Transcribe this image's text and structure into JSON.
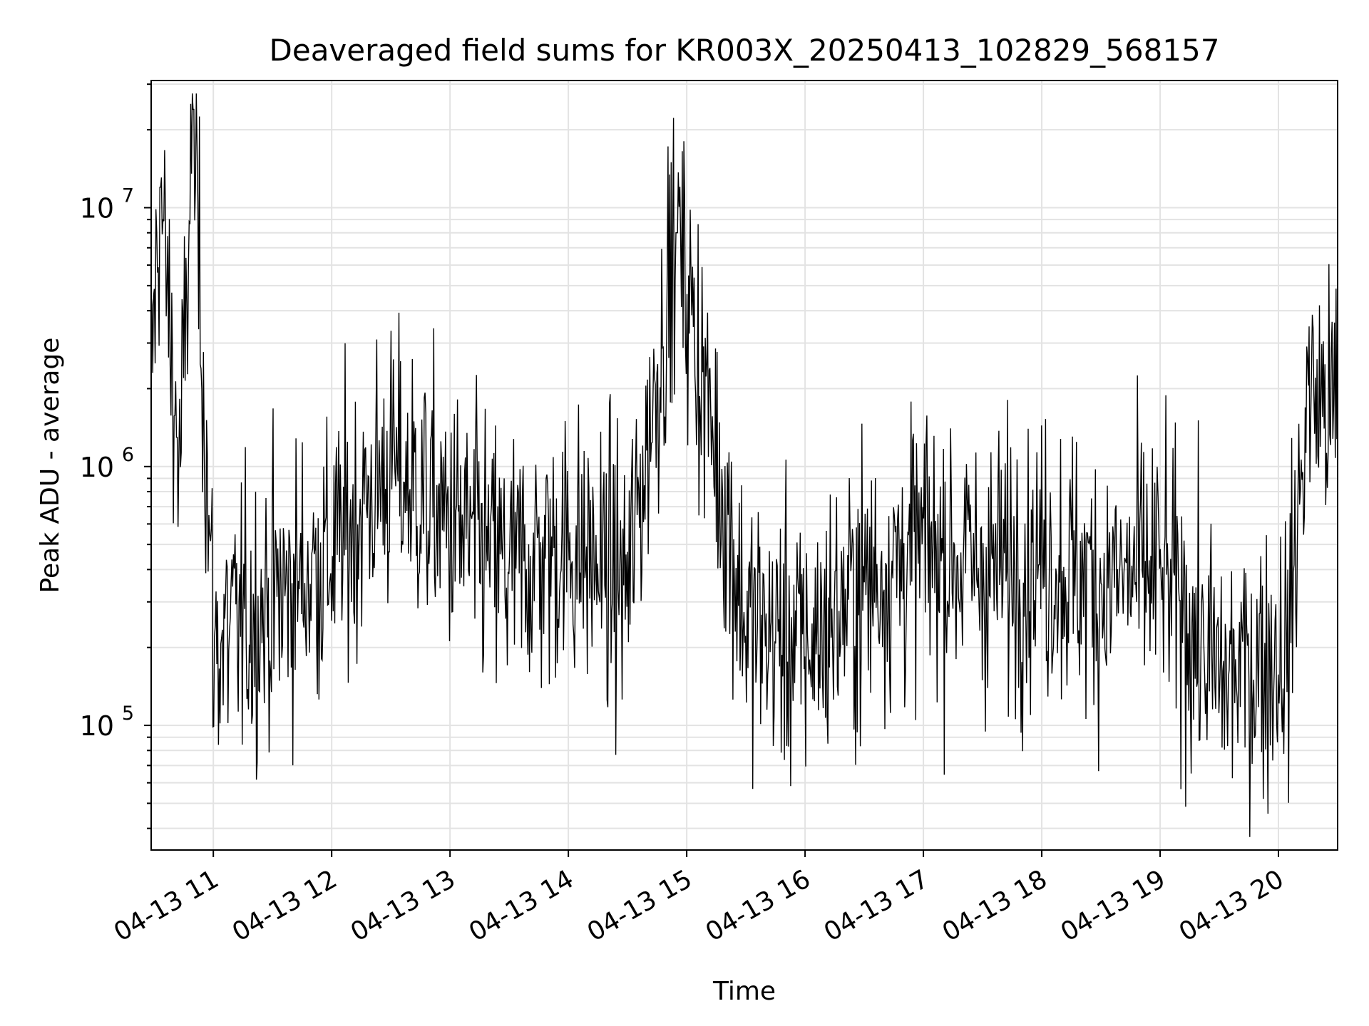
{
  "chart_data": {
    "type": "line",
    "title": "Deaveraged field sums for KR003X_20250413_102829_568157",
    "xlabel": "Time",
    "ylabel": "Peak ADU - average",
    "xlim": [
      "2025-04-13 10:28:29",
      "2025-04-13 20:30:00"
    ],
    "ylim": [
      33000,
      31000000
    ],
    "yscale": "log",
    "grid": true,
    "legend": "none",
    "x_ticks": [
      "04-13 11",
      "04-13 12",
      "04-13 13",
      "04-13 14",
      "04-13 15",
      "04-13 16",
      "04-13 17",
      "04-13 18",
      "04-13 19",
      "04-13 20"
    ],
    "y_ticks": [
      {
        "base": "10",
        "exp": "5",
        "value": 100000
      },
      {
        "base": "10",
        "exp": "6",
        "value": 1000000
      },
      {
        "base": "10",
        "exp": "7",
        "value": 10000000
      }
    ],
    "series": [
      {
        "color": "#000000",
        "x": [
          "2025-04-13 10:28:29",
          "2025-04-13 10:33:00",
          "2025-04-13 10:43:00",
          "2025-04-13 10:50:00",
          "2025-04-13 11:00:00",
          "2025-04-13 11:30:00",
          "2025-04-13 12:00:00",
          "2025-04-13 12:30:00",
          "2025-04-13 13:00:00",
          "2025-04-13 13:30:00",
          "2025-04-13 14:00:00",
          "2025-04-13 14:30:00",
          "2025-04-13 14:55:00",
          "2025-04-13 15:30:00",
          "2025-04-13 16:00:00",
          "2025-04-13 16:30:00",
          "2025-04-13 17:00:00",
          "2025-04-13 17:30:00",
          "2025-04-13 18:00:00",
          "2025-04-13 18:30:00",
          "2025-04-13 19:00:00",
          "2025-04-13 19:30:00",
          "2025-04-13 20:05:00",
          "2025-04-13 20:15:00",
          "2025-04-13 20:30:00"
        ],
        "values": [
          2000000,
          12000000,
          900000,
          24000000,
          200000,
          300000,
          450000,
          1000000,
          600000,
          400000,
          500000,
          350000,
          8000000,
          250000,
          200000,
          350000,
          500000,
          400000,
          450000,
          350000,
          400000,
          150000,
          200000,
          2000000,
          1500000
        ]
      }
    ]
  }
}
